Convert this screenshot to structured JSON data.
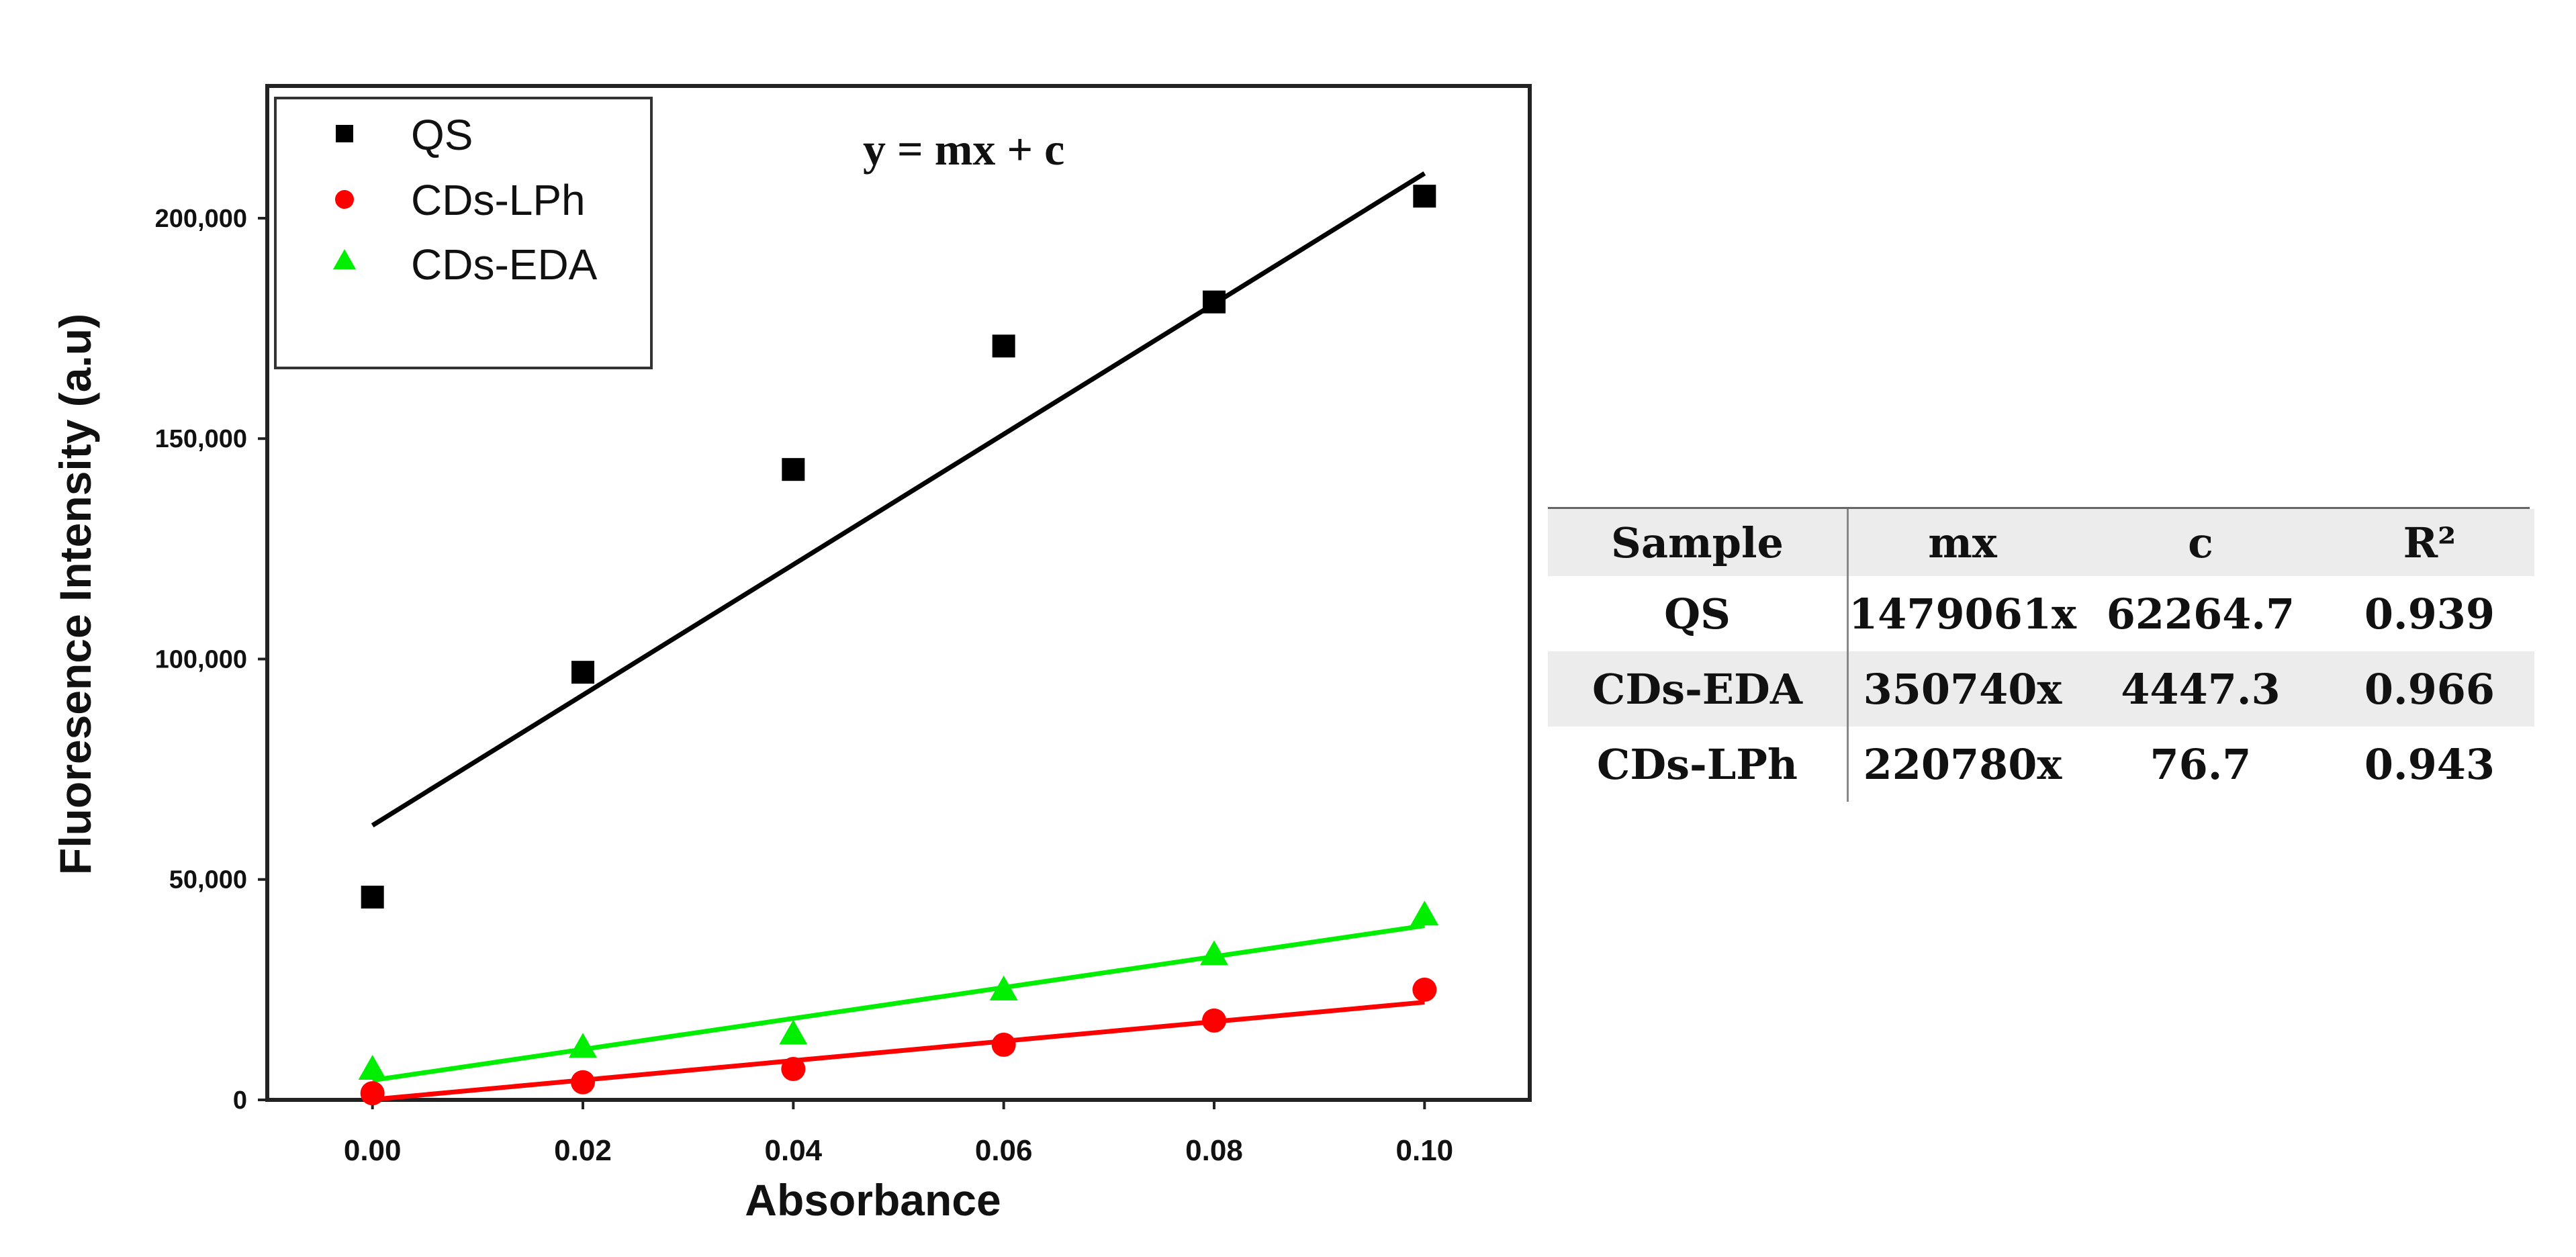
{
  "chart_data": {
    "type": "scatter",
    "title": "",
    "equation_label": "y = mx + c",
    "xlabel": "Absorbance",
    "ylabel": "Fluoresence Intensity (a.u)",
    "xlim": [
      -0.01,
      0.11
    ],
    "ylim": [
      0,
      230000
    ],
    "x_ticks": [
      0.0,
      0.02,
      0.04,
      0.06,
      0.08,
      0.1
    ],
    "x_tick_labels": [
      "0.00",
      "0.02",
      "0.04",
      "0.06",
      "0.08",
      "0.10"
    ],
    "y_ticks": [
      0,
      50000,
      100000,
      150000,
      200000
    ],
    "y_tick_labels": [
      "0",
      "50,000",
      "100,000",
      "150,000",
      "200,000"
    ],
    "legend_position": "top-left",
    "series": [
      {
        "name": "QS",
        "color": "#000000",
        "marker": "square",
        "x": [
          0.0,
          0.02,
          0.04,
          0.06,
          0.08,
          0.1
        ],
        "y": [
          46000,
          97000,
          143000,
          171000,
          181000,
          205000
        ],
        "fit": {
          "slope": 1479061,
          "intercept": 62264.7
        }
      },
      {
        "name": "CDs-LPh",
        "color": "#ff0000",
        "marker": "circle",
        "x": [
          0.0,
          0.02,
          0.04,
          0.06,
          0.08,
          0.1
        ],
        "y": [
          1500,
          4000,
          7000,
          12500,
          18000,
          25000
        ],
        "fit": {
          "slope": 220780,
          "intercept": 76.7
        }
      },
      {
        "name": "CDs-EDA",
        "color": "#00ee00",
        "marker": "triangle",
        "x": [
          0.0,
          0.02,
          0.04,
          0.06,
          0.08,
          0.1
        ],
        "y": [
          7000,
          12000,
          15000,
          25000,
          33000,
          42000
        ],
        "fit": {
          "slope": 350740,
          "intercept": 4447.3
        }
      }
    ]
  },
  "fit_table": {
    "headers": [
      "Sample",
      "mx",
      "c",
      "R²"
    ],
    "rows": [
      [
        "QS",
        "1479061x",
        "62264.7",
        "0.939"
      ],
      [
        "CDs-EDA",
        "350740x",
        "4447.3",
        "0.966"
      ],
      [
        "CDs-LPh",
        "220780x",
        "76.7",
        "0.943"
      ]
    ]
  }
}
